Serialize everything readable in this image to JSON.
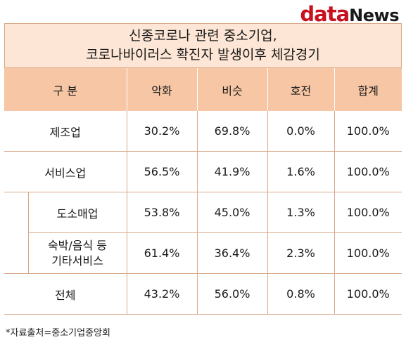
{
  "logo": {
    "part1": "data",
    "part2": "News"
  },
  "title": {
    "line1": "신종코로나 관련 중소기업,",
    "line2": "코로나바이러스 확진자 발생이후 체감경기"
  },
  "table": {
    "headers": [
      "구 분",
      "악화",
      "비슷",
      "호전",
      "합계"
    ],
    "rows": [
      {
        "category": "제조업",
        "sub": false,
        "values": [
          "30.2%",
          "69.8%",
          "0.0%",
          "100.0%"
        ]
      },
      {
        "category": "서비스업",
        "sub": false,
        "values": [
          "56.5%",
          "41.9%",
          "1.6%",
          "100.0%"
        ]
      },
      {
        "category": "도소매업",
        "sub": true,
        "values": [
          "53.8%",
          "45.0%",
          "1.3%",
          "100.0%"
        ]
      },
      {
        "category_line1": "숙박/음식 등",
        "category_line2": "기타서비스",
        "sub": true,
        "values": [
          "61.4%",
          "36.4%",
          "2.3%",
          "100.0%"
        ]
      },
      {
        "category": "전체",
        "sub": false,
        "values": [
          "43.2%",
          "56.0%",
          "0.8%",
          "100.0%"
        ]
      }
    ]
  },
  "footnote": "*자료출처=중소기업중앙회"
}
